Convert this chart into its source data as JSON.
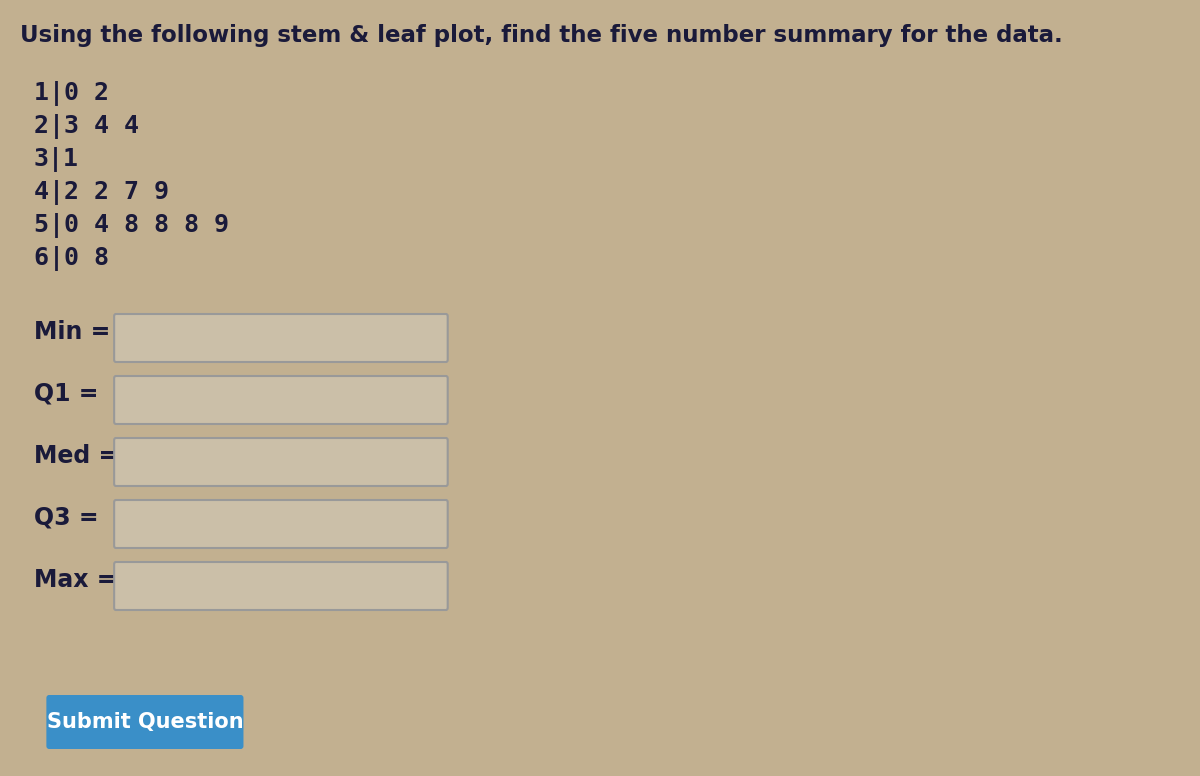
{
  "title": "Using the following stem & leaf plot, find the five number summary for the data.",
  "stem_leaf_rows": [
    "1|0 2",
    "2|3 4 4",
    "3|1",
    "4|2 2 7 9",
    "5|0 4 8 8 8 9",
    "6|0 8"
  ],
  "labels": [
    "Min =",
    "Q1 =",
    "Med =",
    "Q3 =",
    "Max ="
  ],
  "background_color": "#c2b090",
  "title_color": "#1a1a3a",
  "text_color": "#1a1a3a",
  "box_face_color": "#cbbfa8",
  "box_edge_color": "#999999",
  "button_color": "#3a8fc8",
  "button_text": "Submit Question",
  "button_text_color": "#ffffff",
  "title_fontsize": 16.5,
  "stem_fontsize": 18,
  "label_fontsize": 17,
  "button_fontsize": 15
}
